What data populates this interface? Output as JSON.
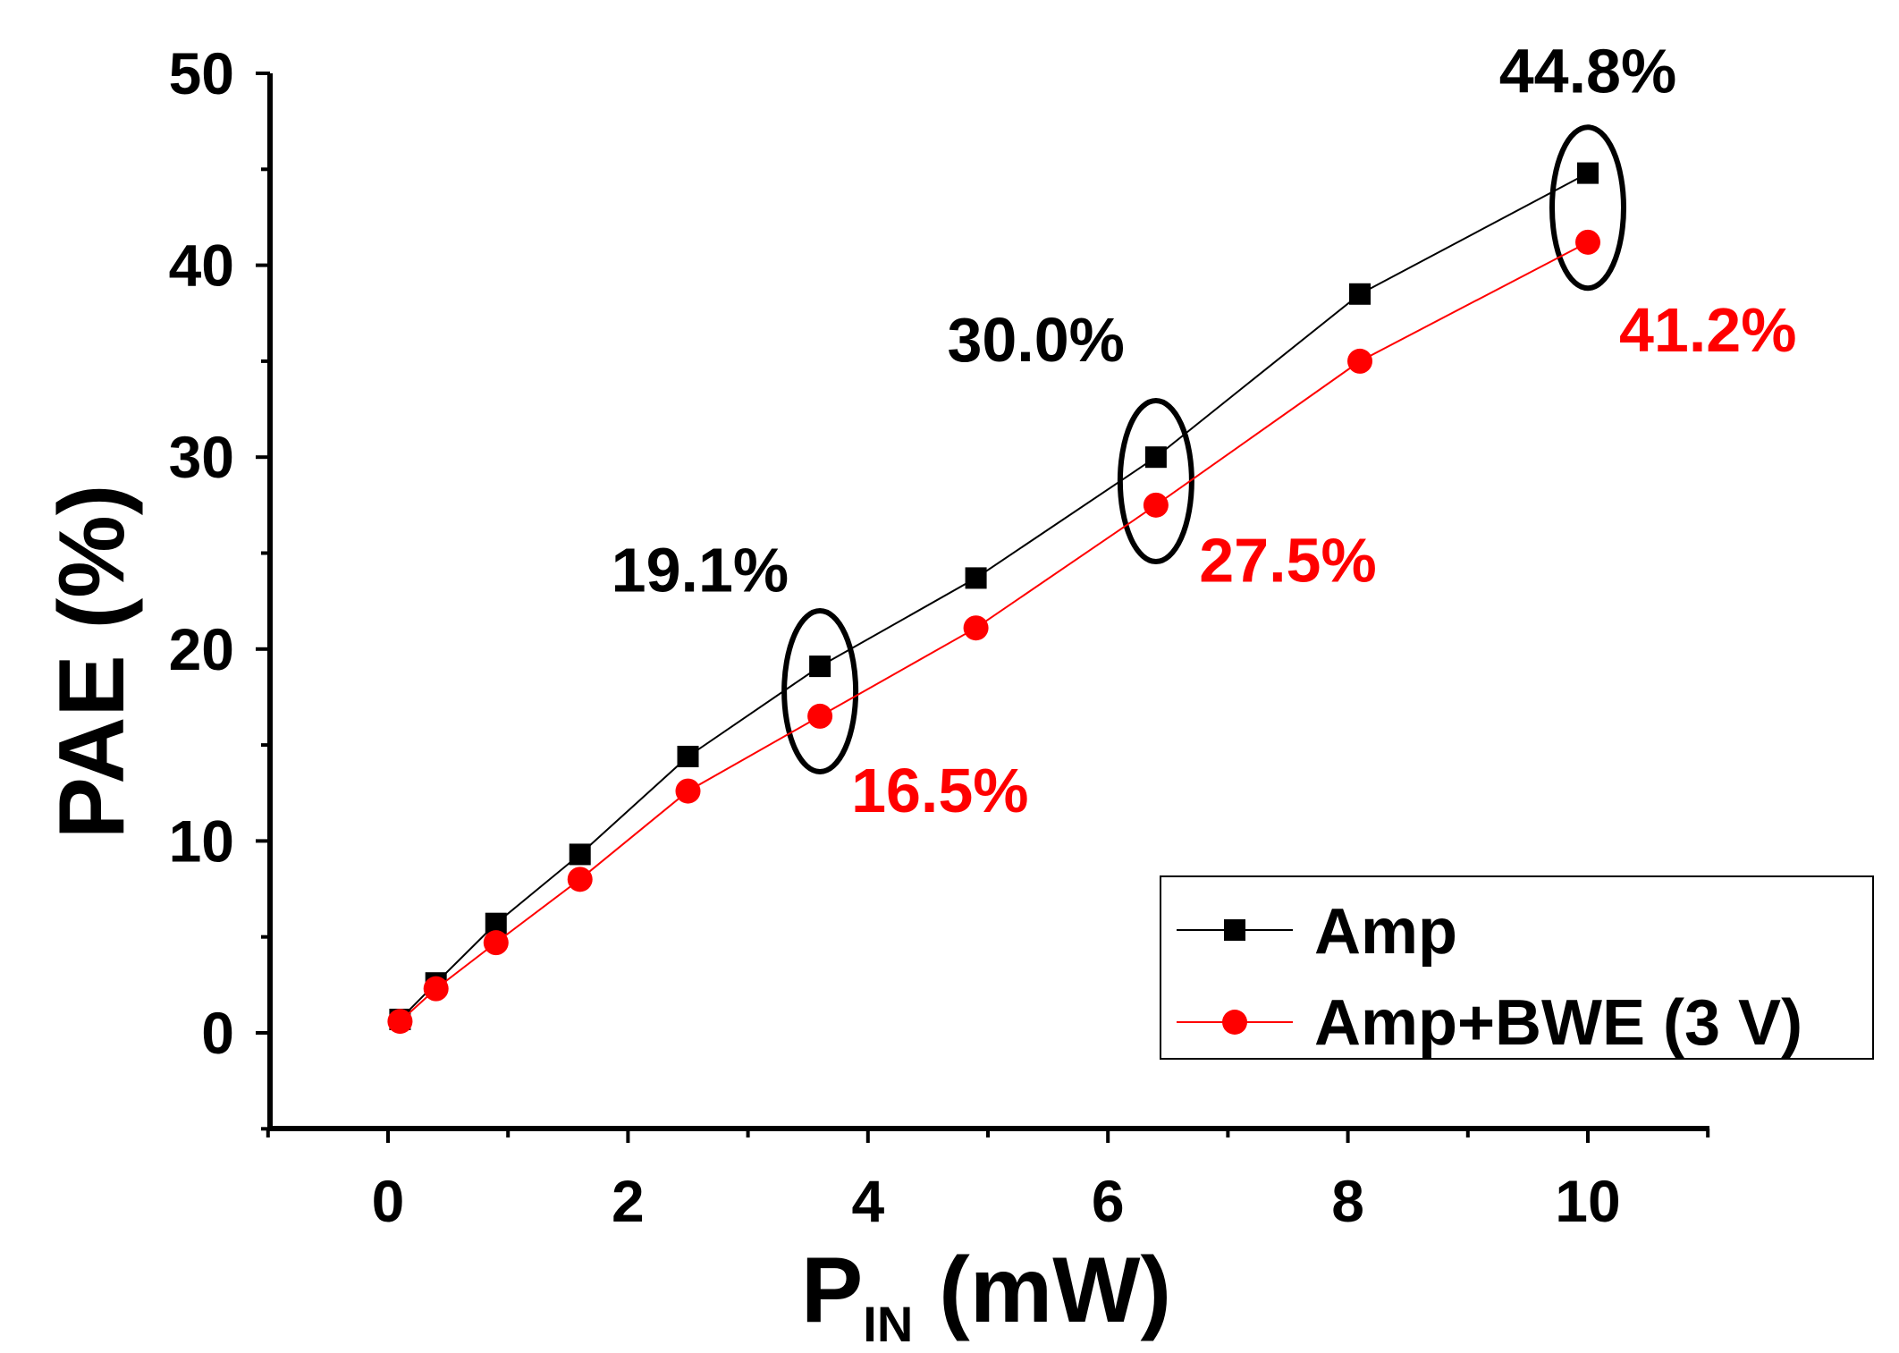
{
  "chart_data": {
    "type": "line",
    "xlabel": {
      "main": "P",
      "sub": "IN",
      "rest": " (mW)"
    },
    "ylabel": "PAE (%)",
    "xlim": [
      -1,
      11
    ],
    "ylim": [
      -5,
      50
    ],
    "xticks": [
      0,
      2,
      4,
      6,
      8,
      10
    ],
    "yticks": [
      0,
      10,
      20,
      30,
      40,
      50
    ],
    "grid": false,
    "legend_position": "bottom-right",
    "series": [
      {
        "name": "Amp",
        "color": "#000000",
        "marker": "square",
        "x": [
          0.1,
          0.4,
          0.9,
          1.6,
          2.5,
          3.6,
          4.9,
          6.4,
          8.1,
          10.0
        ],
        "y": [
          0.7,
          2.6,
          5.7,
          9.3,
          14.4,
          19.1,
          23.7,
          30.0,
          38.5,
          44.8
        ]
      },
      {
        "name": "Amp+BWE (3 V)",
        "color": "#ff0000",
        "marker": "circle",
        "x": [
          0.1,
          0.4,
          0.9,
          1.6,
          2.5,
          3.6,
          4.9,
          6.4,
          8.1,
          10.0
        ],
        "y": [
          0.6,
          2.3,
          4.7,
          8.0,
          12.6,
          16.5,
          21.1,
          27.5,
          35.0,
          41.2
        ]
      }
    ],
    "annotations": [
      {
        "text": "19.1%",
        "color": "#000000",
        "x": 2.6,
        "y": 23.0
      },
      {
        "text": "16.5%",
        "color": "#ff0000",
        "x": 4.6,
        "y": 11.5
      },
      {
        "text": "30.0%",
        "color": "#000000",
        "x": 5.4,
        "y": 35.0
      },
      {
        "text": "27.5%",
        "color": "#ff0000",
        "x": 7.5,
        "y": 23.5
      },
      {
        "text": "44.8%",
        "color": "#000000",
        "x": 10.0,
        "y": 49.0
      },
      {
        "text": "41.2%",
        "color": "#ff0000",
        "x": 11.0,
        "y": 35.5
      }
    ],
    "highlight_x": [
      3.6,
      6.4,
      10.0
    ]
  }
}
